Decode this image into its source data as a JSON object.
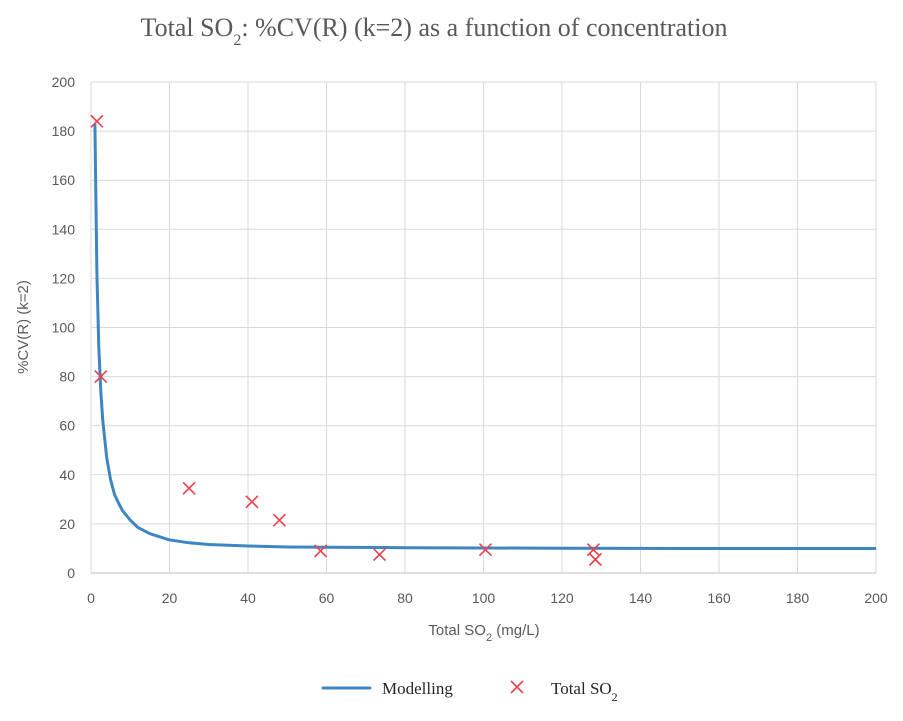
{
  "chart_data": {
    "type": "line+scatter",
    "title": "Total SO₂: %CV(R) (k=2) as a function of concentration",
    "xlabel": "Total SO₂ (mg/L)",
    "ylabel": "%CV(R) (k=2)",
    "xlim": [
      0,
      200
    ],
    "ylim": [
      0,
      200
    ],
    "xticks": [
      0,
      20,
      40,
      60,
      80,
      100,
      120,
      140,
      160,
      180,
      200
    ],
    "yticks": [
      0,
      20,
      40,
      60,
      80,
      100,
      120,
      140,
      160,
      180,
      200
    ],
    "grid": true,
    "legend_position": "bottom",
    "series": [
      {
        "name": "Modelling",
        "type": "line",
        "color": "#3d86c2",
        "x": [
          1,
          1.5,
          2,
          2.5,
          3,
          4,
          5,
          6,
          7,
          8,
          10,
          12,
          15,
          20,
          25,
          30,
          40,
          50,
          60,
          80,
          100,
          120,
          150,
          180,
          200
        ],
        "y": [
          183,
          122,
          92,
          74,
          62,
          47,
          38,
          32,
          28.5,
          25.5,
          21.5,
          18.5,
          16,
          13.5,
          12.3,
          11.6,
          11,
          10.6,
          10.5,
          10.3,
          10.2,
          10.1,
          10,
          10,
          10
        ]
      },
      {
        "name": "Total SO₂",
        "type": "scatter",
        "marker": "x",
        "color": "#e8424c",
        "x": [
          1.5,
          2.5,
          25,
          41,
          48,
          58.5,
          73.5,
          100.5,
          128,
          128.5
        ],
        "y": [
          184,
          80,
          34.5,
          29,
          21.5,
          9,
          7.5,
          9.5,
          9.5,
          5.5
        ]
      }
    ]
  }
}
